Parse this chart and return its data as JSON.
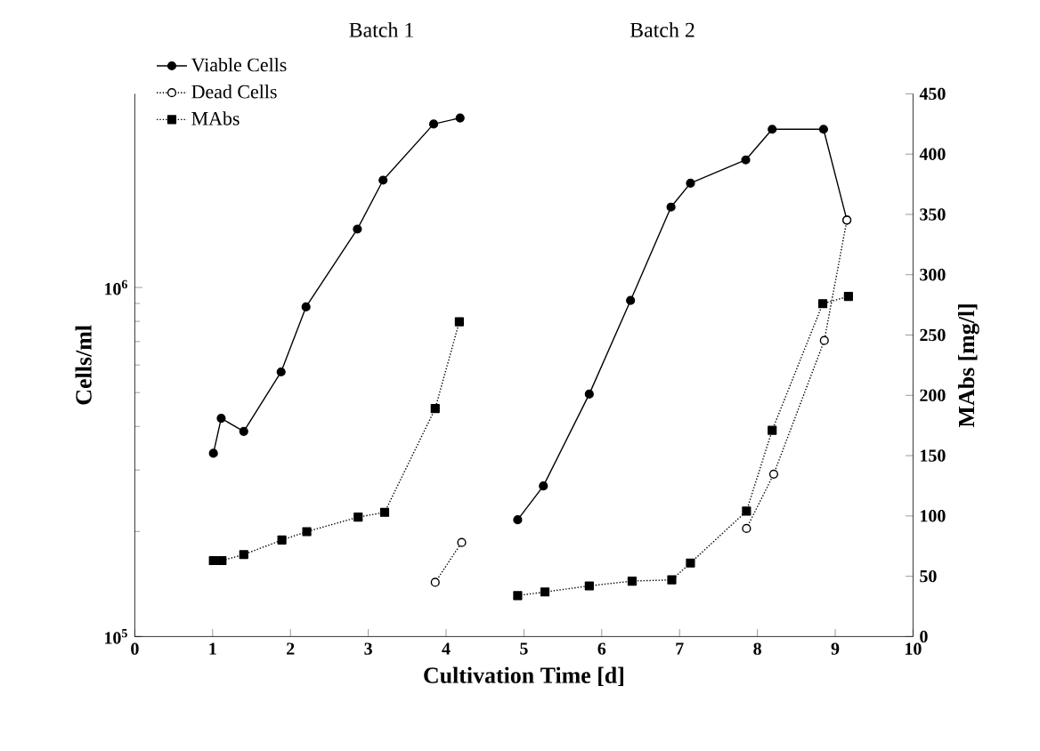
{
  "chart_data": {
    "type": "line",
    "xlabel": "Cultivation Time [d]",
    "ylabel": "Cells/ml",
    "y2label": "MAbs [mg/l]",
    "annotations": [
      "Batch 1",
      "Batch 2"
    ],
    "xlim": [
      0,
      10
    ],
    "xticks": [
      0,
      1,
      2,
      3,
      4,
      5,
      6,
      7,
      8,
      9,
      10
    ],
    "ylim": [
      100000,
      3590000
    ],
    "yticks": [
      {
        "value": 100000,
        "label": "10$^{5}$"
      },
      {
        "value": 1000000,
        "label": "10$^{6}$"
      }
    ],
    "y2lim": [
      0,
      450
    ],
    "y2ticks": [
      0,
      50,
      100,
      150,
      200,
      250,
      300,
      350,
      400,
      450
    ],
    "log": "y",
    "grid": false,
    "legend": "top left",
    "series": [
      {
        "name": "Viable Cells",
        "color": "#000000",
        "marker": "circle",
        "line_style": "solid",
        "x": [
          1.01,
          1.11,
          1.4,
          1.88,
          2.2,
          2.86,
          3.19,
          3.84,
          4.18
        ],
        "values": [
          335000,
          422000,
          387000,
          573000,
          880000,
          1470000,
          2030000,
          2940000,
          3060000
        ]
      },
      {
        "name": "Dead Cells",
        "color": "#000000",
        "marker": "circle",
        "line_style": "dotted",
        "x": [
          3.86,
          4.2
        ],
        "values": [
          143000,
          186000
        ]
      },
      {
        "name": "MAbs",
        "color": "#000000",
        "marker": "square",
        "line_style": "dotted",
        "axis": "y2",
        "x": [
          1.01,
          1.12,
          1.4,
          1.89,
          2.21,
          2.87,
          3.21,
          3.86,
          4.17
        ],
        "values": [
          63,
          63,
          68,
          80,
          87,
          99,
          103,
          189,
          261
        ]
      },
      {
        "color": "#000000",
        "marker": "circle",
        "line_style": "solid",
        "x": [
          4.92,
          5.25,
          5.84,
          6.37,
          6.89,
          7.14,
          7.85,
          8.19,
          8.85,
          9.15
        ],
        "values": [
          216000,
          270000,
          495000,
          918000,
          1700000,
          1990000,
          2320000,
          2840000,
          2840000,
          1560000
        ]
      },
      {
        "color": "#000000",
        "marker": "circle",
        "line_style": "dotted",
        "x": [
          7.86,
          8.21,
          8.86,
          9.15
        ],
        "values": [
          204000,
          292000,
          705000,
          1560000
        ]
      },
      {
        "color": "#000000",
        "marker": "square",
        "line_style": "dotted",
        "axis": "y2",
        "x": [
          4.92,
          5.27,
          5.84,
          6.39,
          6.9,
          7.14,
          7.86,
          8.19,
          8.84,
          9.17
        ],
        "values": [
          34,
          37,
          42,
          46,
          47,
          61,
          104,
          171,
          276,
          282
        ]
      }
    ]
  }
}
